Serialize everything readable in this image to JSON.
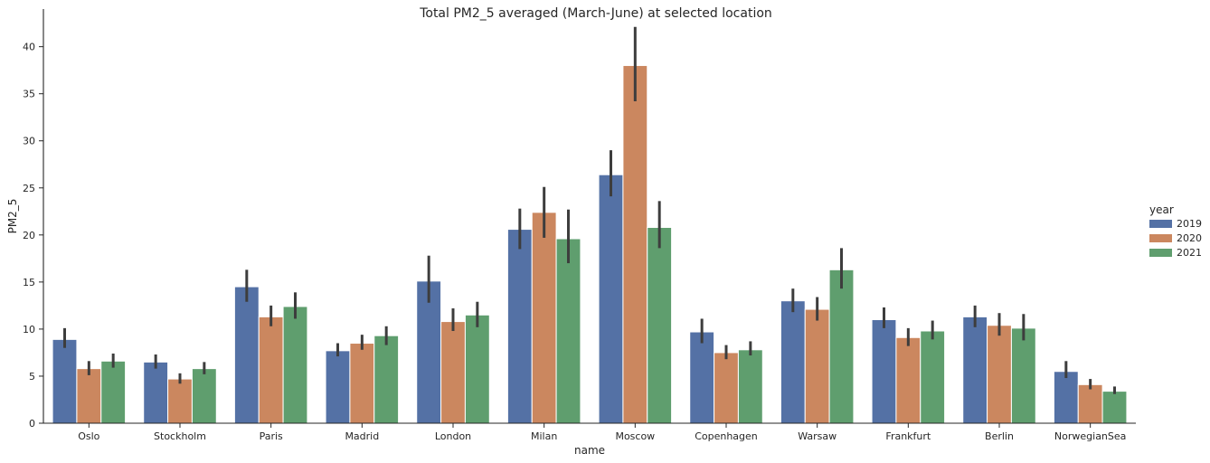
{
  "chart_data": {
    "type": "bar",
    "title": "Total PM2_5 averaged (March-June) at selected location",
    "xlabel": "name",
    "ylabel": "PM2_5",
    "ylim": [
      0,
      44
    ],
    "yticks": [
      0,
      5,
      10,
      15,
      20,
      25,
      30,
      35,
      40
    ],
    "categories": [
      "Oslo",
      "Stockholm",
      "Paris",
      "Madrid",
      "London",
      "Milan",
      "Moscow",
      "Copenhagen",
      "Warsaw",
      "Frankfurt",
      "Berlin",
      "NorwegianSea"
    ],
    "legend_title": "year",
    "series": [
      {
        "name": "2019",
        "color": "#5471a5",
        "values": [
          8.9,
          6.5,
          14.5,
          7.7,
          15.1,
          20.6,
          26.4,
          9.7,
          13.0,
          11.0,
          11.3,
          5.5
        ],
        "err_low": [
          8.0,
          5.8,
          12.9,
          7.1,
          12.8,
          18.5,
          24.1,
          8.5,
          11.8,
          10.1,
          10.2,
          4.8
        ],
        "err_high": [
          10.1,
          7.3,
          16.3,
          8.5,
          17.8,
          22.8,
          29.0,
          11.1,
          14.3,
          12.3,
          12.5,
          6.6
        ]
      },
      {
        "name": "2020",
        "color": "#cb875f",
        "values": [
          5.8,
          4.7,
          11.3,
          8.5,
          10.8,
          22.4,
          38.0,
          7.5,
          12.1,
          9.1,
          10.4,
          4.1
        ],
        "err_low": [
          5.1,
          4.2,
          10.3,
          7.8,
          9.8,
          19.7,
          34.2,
          6.8,
          10.9,
          8.2,
          9.3,
          3.6
        ],
        "err_high": [
          6.6,
          5.3,
          12.5,
          9.4,
          12.2,
          25.1,
          42.1,
          8.3,
          13.4,
          10.1,
          11.7,
          4.7
        ]
      },
      {
        "name": "2021",
        "color": "#5f9e6e",
        "values": [
          6.6,
          5.8,
          12.4,
          9.3,
          11.5,
          19.6,
          20.8,
          7.8,
          16.3,
          9.8,
          10.1,
          3.4
        ],
        "err_low": [
          5.9,
          5.2,
          11.1,
          8.3,
          10.2,
          17.0,
          18.6,
          7.2,
          14.3,
          8.9,
          8.8,
          3.1
        ],
        "err_high": [
          7.4,
          6.5,
          13.9,
          10.3,
          12.9,
          22.7,
          23.6,
          8.7,
          18.6,
          10.9,
          11.6,
          3.9
        ]
      }
    ]
  }
}
